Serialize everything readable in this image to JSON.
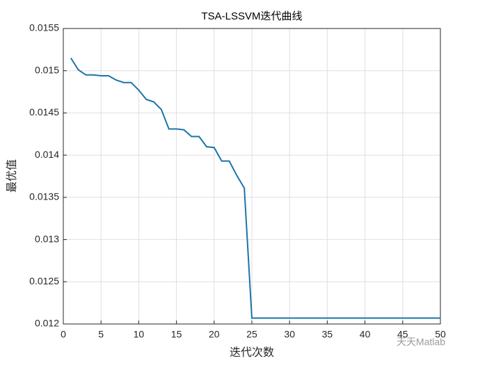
{
  "chart_data": {
    "type": "line",
    "title": "TSA-LSSVM迭代曲线",
    "xlabel": "迭代次数",
    "ylabel": "最优值",
    "annotation": "天天Matlab",
    "x": [
      1,
      2,
      3,
      4,
      5,
      6,
      7,
      8,
      9,
      10,
      11,
      12,
      13,
      14,
      15,
      16,
      17,
      18,
      19,
      20,
      21,
      22,
      23,
      24,
      25,
      26,
      27,
      28,
      29,
      30,
      31,
      32,
      33,
      34,
      35,
      36,
      37,
      38,
      39,
      40,
      41,
      42,
      43,
      44,
      45,
      46,
      47,
      48,
      49,
      50
    ],
    "series": [
      {
        "name": "TSA-LSSVM",
        "color": "#1a74a6",
        "values": [
          0.01515,
          0.01501,
          0.01495,
          0.01495,
          0.01494,
          0.01494,
          0.01489,
          0.01486,
          0.01486,
          0.01477,
          0.01466,
          0.01463,
          0.01454,
          0.01431,
          0.01431,
          0.0143,
          0.01422,
          0.01422,
          0.0141,
          0.01409,
          0.01393,
          0.01393,
          0.01376,
          0.01361,
          0.01207,
          0.01207,
          0.01207,
          0.01207,
          0.01207,
          0.01207,
          0.01207,
          0.01207,
          0.01207,
          0.01207,
          0.01207,
          0.01207,
          0.01207,
          0.01207,
          0.01207,
          0.01207,
          0.01207,
          0.01207,
          0.01207,
          0.01207,
          0.01207,
          0.01207,
          0.01207,
          0.01207,
          0.01207,
          0.01207
        ]
      }
    ],
    "xlim": [
      0,
      50
    ],
    "xticks": [
      0,
      5,
      10,
      15,
      20,
      25,
      30,
      35,
      40,
      45,
      50
    ],
    "ylim": [
      0.012,
      0.0155
    ],
    "yticks": [
      0.012,
      0.0125,
      0.013,
      0.0135,
      0.014,
      0.0145,
      0.015,
      0.0155
    ],
    "grid": true
  }
}
